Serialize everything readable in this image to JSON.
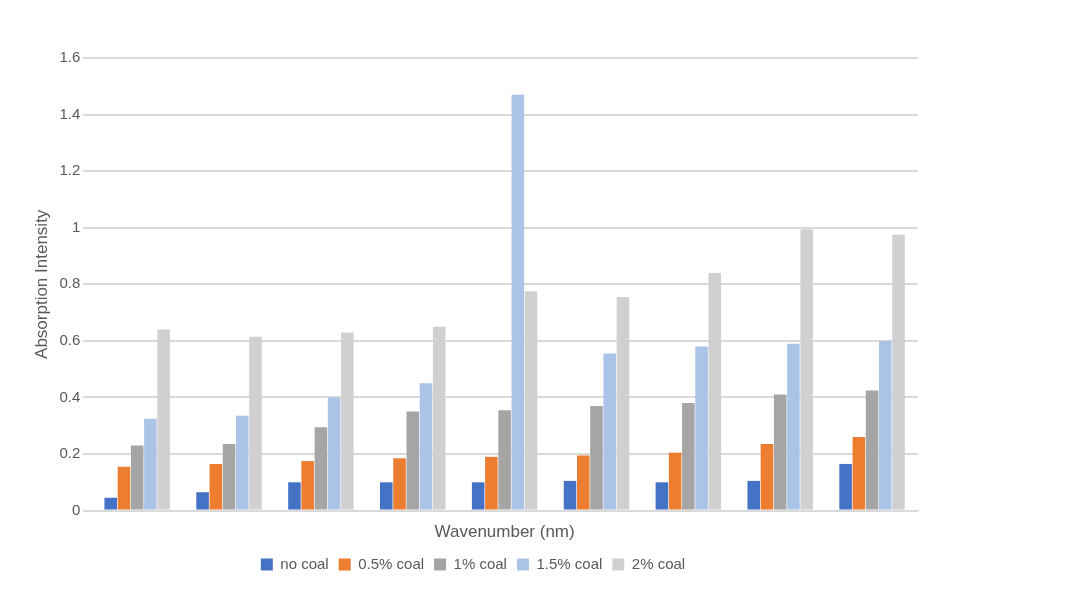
{
  "chart_data": {
    "type": "bar",
    "xlabel": "Wavenumber (nm)",
    "ylabel": "Absorption Intensity",
    "categories": [
      null,
      null,
      null,
      null,
      null,
      null,
      null,
      null,
      null
    ],
    "series": [
      {
        "name": "no coal",
        "color": "#4472c4",
        "values": [
          0.045,
          0.065,
          0.1,
          0.1,
          0.1,
          0.105,
          0.1,
          0.105,
          0.165
        ]
      },
      {
        "name": "0.5% coal",
        "color": "#ed7d31",
        "values": [
          0.155,
          0.165,
          0.175,
          0.185,
          0.19,
          0.195,
          0.205,
          0.235,
          0.26
        ]
      },
      {
        "name": "1% coal",
        "color": "#a5a5a5",
        "values": [
          0.23,
          0.235,
          0.295,
          0.35,
          0.355,
          0.37,
          0.38,
          0.41,
          0.425
        ]
      },
      {
        "name": "1.5% coal",
        "color": "#a9c4e6",
        "values": [
          0.325,
          0.335,
          0.4,
          0.45,
          1.47,
          0.555,
          0.58,
          0.59,
          0.6
        ]
      },
      {
        "name": "2% coal",
        "color": "#d0d0d0",
        "values": [
          0.64,
          0.615,
          0.63,
          0.65,
          0.775,
          0.755,
          0.84,
          0.995,
          0.975
        ]
      }
    ],
    "ylim": [
      0,
      1.6
    ],
    "yticks": [
      0,
      0.2,
      0.4,
      0.6,
      0.8,
      1,
      1.2,
      1.4,
      1.6
    ],
    "grid": "y",
    "legend": "bottom",
    "tick_labels": "y"
  }
}
